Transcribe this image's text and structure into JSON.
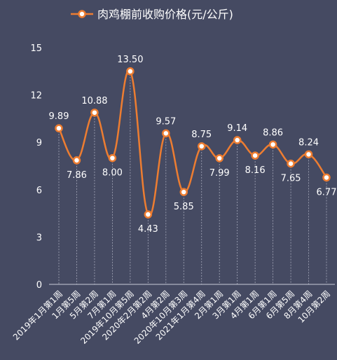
{
  "chart_data": {
    "type": "line",
    "series": [
      {
        "name": "肉鸡棚前收购价格(元/公斤)",
        "color": "#ed7d31",
        "values": [
          9.89,
          7.86,
          10.88,
          8.0,
          13.5,
          4.43,
          9.57,
          5.85,
          8.75,
          7.99,
          9.14,
          8.16,
          8.86,
          7.65,
          8.24,
          6.77
        ],
        "value_labels": [
          "9.89",
          "7.86",
          "10.88",
          "8.00",
          "13.50",
          "4.43",
          "9.57",
          "5.85",
          "8.75",
          "7.99",
          "9.14",
          "8.16",
          "8.86",
          "7.65",
          "8.24",
          "6.77"
        ]
      }
    ],
    "categories": [
      "2019年1月第1周",
      "1月第5周",
      "5月第2周",
      "7月第1周",
      "2019年10月第5周",
      "2020年2月第2周",
      "4月第2周",
      "2020年10月第3周",
      "2021年1月第4周",
      "2月第1周",
      "3月第1周",
      "4月第1周",
      "6月第1周",
      "6月第5周",
      "8月第4周",
      "10月第2周"
    ],
    "y_ticks": [
      "0",
      "3",
      "6",
      "9",
      "12",
      "15"
    ],
    "ylim": [
      0,
      15
    ],
    "legend_position": "top-center",
    "grid": "vertical-dashed"
  }
}
